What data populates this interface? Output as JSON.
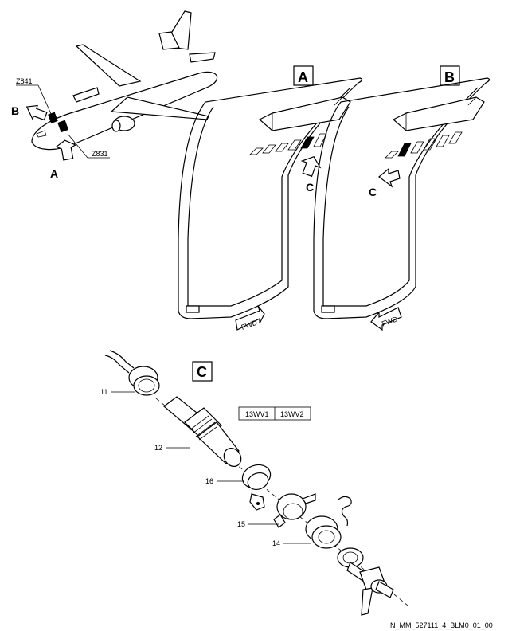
{
  "views": {
    "A": "A",
    "B": "B",
    "C": "C"
  },
  "aircraft": {
    "arrow_B": "B",
    "arrow_A": "A",
    "zone_upper": "Z841",
    "zone_lower": "Z831"
  },
  "panels": {
    "arrow_C_left": "C",
    "arrow_C_right": "C",
    "fwd_left": "FWD",
    "fwd_right": "FWD"
  },
  "detail_C": {
    "effectivity": [
      "13WV1",
      "13WV2"
    ],
    "callouts": [
      "11",
      "12",
      "16",
      "15",
      "14"
    ]
  },
  "footer": {
    "reference": "N_MM_527111_4_BLM0_01_00"
  }
}
